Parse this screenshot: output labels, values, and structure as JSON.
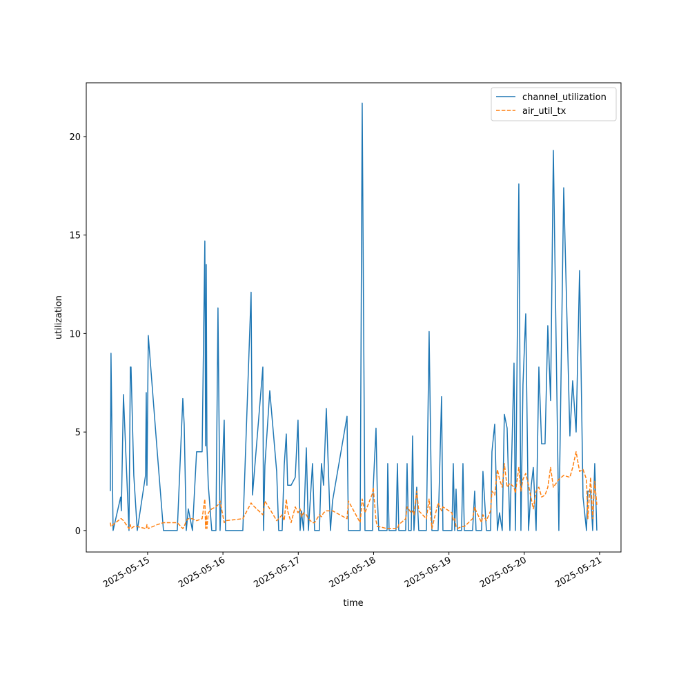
{
  "chart_data": {
    "type": "line",
    "x_label": "time",
    "y_label": "utilization",
    "x": [
      "2025-05-14 12:07",
      "2025-05-14 12:20",
      "2025-05-14 13:00",
      "2025-05-14 15:25",
      "2025-05-14 15:38",
      "2025-05-14 16:18",
      "2025-05-14 18:04",
      "2025-05-14 18:30",
      "2025-05-14 18:43",
      "2025-05-14 19:36",
      "2025-05-14 20:42",
      "2025-05-14 23:20",
      "2025-05-14 23:34",
      "2025-05-14 23:47",
      "2025-05-15 00:13",
      "2025-05-15 03:04",
      "2025-05-15 05:03",
      "2025-05-15 09:27",
      "2025-05-15 11:13",
      "2025-05-15 11:39",
      "2025-05-15 12:19",
      "2025-05-15 12:58",
      "2025-05-15 14:17",
      "2025-05-15 15:36",
      "2025-05-15 17:22",
      "2025-05-15 18:14",
      "2025-05-15 18:28",
      "2025-05-15 18:41",
      "2025-05-15 18:54",
      "2025-05-15 19:20",
      "2025-05-15 20:26",
      "2025-05-15 21:46",
      "2025-05-15 22:25",
      "2025-05-15 23:05",
      "2025-05-16 00:24",
      "2025-05-16 00:50",
      "2025-05-16 06:20",
      "2025-05-16 08:58",
      "2025-05-16 09:25",
      "2025-05-16 12:43",
      "2025-05-16 12:56",
      "2025-05-16 13:22",
      "2025-05-16 14:55",
      "2025-05-16 17:07",
      "2025-05-16 17:46",
      "2025-05-16 18:52",
      "2025-05-16 19:31",
      "2025-05-16 20:11",
      "2025-05-16 20:37",
      "2025-05-16 21:43",
      "2025-05-16 23:02",
      "2025-05-16 23:55",
      "2025-05-17 00:35",
      "2025-05-17 01:01",
      "2025-05-17 01:41",
      "2025-05-17 02:34",
      "2025-05-17 03:13",
      "2025-05-17 04:32",
      "2025-05-17 05:12",
      "2025-05-17 06:44",
      "2025-05-17 07:23",
      "2025-05-17 08:03",
      "2025-05-17 08:56",
      "2025-05-17 10:15",
      "2025-05-17 10:55",
      "2025-05-17 15:32",
      "2025-05-17 15:58",
      "2025-05-17 19:43",
      "2025-05-17 20:22",
      "2025-05-17 21:15",
      "2025-05-17 23:40",
      "2025-05-17 23:53",
      "2025-05-18 00:46",
      "2025-05-18 01:12",
      "2025-05-18 01:38",
      "2025-05-18 04:17",
      "2025-05-18 04:30",
      "2025-05-18 04:56",
      "2025-05-18 07:08",
      "2025-05-18 07:35",
      "2025-05-18 08:01",
      "2025-05-18 10:13",
      "2025-05-18 10:40",
      "2025-05-18 11:06",
      "2025-05-18 11:59",
      "2025-05-18 12:25",
      "2025-05-18 12:51",
      "2025-05-18 13:44",
      "2025-05-18 14:23",
      "2025-05-18 16:49",
      "2025-05-18 17:41",
      "2025-05-18 18:34",
      "2025-05-18 20:33",
      "2025-05-18 21:39",
      "2025-05-18 22:05",
      "2025-05-19 00:57",
      "2025-05-19 01:23",
      "2025-05-19 01:50",
      "2025-05-19 02:16",
      "2025-05-19 02:42",
      "2025-05-19 04:01",
      "2025-05-19 04:28",
      "2025-05-19 04:54",
      "2025-05-19 07:32",
      "2025-05-19 08:12",
      "2025-05-19 08:38",
      "2025-05-19 10:24",
      "2025-05-19 10:50",
      "2025-05-19 11:56",
      "2025-05-19 13:16",
      "2025-05-19 13:42",
      "2025-05-19 14:35",
      "2025-05-19 15:27",
      "2025-05-19 16:07",
      "2025-05-19 16:59",
      "2025-05-19 17:39",
      "2025-05-19 18:32",
      "2025-05-19 19:25",
      "2025-05-19 20:44",
      "2025-05-19 21:10",
      "2025-05-19 22:16",
      "2025-05-19 22:56",
      "2025-05-19 23:35",
      "2025-05-20 00:28",
      "2025-05-20 01:21",
      "2025-05-20 02:14",
      "2025-05-20 02:53",
      "2025-05-20 03:46",
      "2025-05-20 04:39",
      "2025-05-20 05:31",
      "2025-05-20 06:37",
      "2025-05-20 07:30",
      "2025-05-20 08:23",
      "2025-05-20 09:16",
      "2025-05-20 11:01",
      "2025-05-20 12:34",
      "2025-05-20 14:32",
      "2025-05-20 15:25",
      "2025-05-20 16:31",
      "2025-05-20 17:37",
      "2025-05-20 18:43",
      "2025-05-20 19:49",
      "2025-05-20 20:15",
      "2025-05-20 21:08",
      "2025-05-20 21:47",
      "2025-05-20 22:27",
      "2025-05-20 23:07"
    ],
    "series": [
      {
        "name": "channel_utilization",
        "color": "#1f77b4",
        "linestyle": "solid",
        "values": [
          2.0,
          9.0,
          0,
          1.7,
          1.0,
          6.9,
          0,
          8.3,
          8.3,
          2.8,
          0,
          2.8,
          7.0,
          2.3,
          9.9,
          4.0,
          0,
          0,
          6.7,
          5.4,
          0,
          1.1,
          0,
          4.0,
          4.0,
          14.7,
          4.3,
          13.5,
          4.3,
          2.3,
          0,
          0,
          11.3,
          0,
          5.6,
          0,
          0,
          12.1,
          1.8,
          8.3,
          0,
          3.3,
          7.1,
          3.0,
          0,
          0,
          3.3,
          4.9,
          2.3,
          2.3,
          2.7,
          5.6,
          0,
          1.0,
          0,
          4.2,
          0,
          3.4,
          0,
          0,
          3.4,
          2.3,
          6.2,
          0,
          1.5,
          5.8,
          0,
          0,
          21.7,
          0,
          0,
          2.2,
          5.2,
          1.7,
          0,
          0,
          3.4,
          0,
          0,
          3.4,
          0,
          0,
          3.4,
          0,
          0,
          4.8,
          0,
          2.2,
          0,
          0,
          10.1,
          0,
          0,
          6.8,
          0,
          0,
          3.4,
          0,
          2.1,
          0,
          0,
          3.4,
          0,
          0,
          2.0,
          0,
          0,
          3.0,
          0,
          0,
          4.0,
          5.4,
          0,
          0.9,
          0,
          5.9,
          5.2,
          0,
          8.5,
          0,
          17.6,
          0,
          7.4,
          11.0,
          0,
          2.3,
          3.2,
          0,
          8.3,
          4.4,
          4.4,
          10.4,
          6.6,
          19.3,
          0,
          17.4,
          4.8,
          7.6,
          5.0,
          13.2,
          1.7,
          0,
          2.0,
          2.0,
          0,
          3.4,
          0
        ]
      },
      {
        "name": "air_util_tx",
        "color": "#ff7f0e",
        "linestyle": "dashed",
        "values": [
          0.4,
          0.2,
          0.3,
          0.6,
          0.6,
          0.5,
          0.1,
          0.3,
          0.1,
          0.2,
          0.2,
          0.1,
          0.1,
          0.3,
          0.1,
          0.3,
          0.4,
          0.4,
          0.1,
          0.2,
          0.5,
          0.6,
          0.6,
          0.5,
          0.6,
          1.6,
          0.1,
          0.8,
          0.1,
          0.9,
          1.1,
          1.2,
          1.3,
          1.5,
          0.4,
          0.5,
          0.6,
          1.4,
          1.3,
          0.8,
          1.0,
          1.5,
          1.1,
          0.5,
          0.6,
          0.8,
          0.5,
          1.6,
          1.0,
          0.4,
          1.2,
          0.9,
          1.1,
          0.7,
          0.9,
          0.8,
          0.6,
          0.4,
          0.4,
          0.8,
          0.7,
          0.9,
          1.0,
          1.0,
          1.0,
          0.6,
          1.5,
          0.4,
          1.6,
          0.9,
          1.9,
          2.2,
          0.5,
          0.2,
          0.2,
          0.1,
          0.1,
          0.1,
          0.1,
          0.1,
          0.3,
          0.6,
          1.2,
          1.1,
          0.9,
          1.0,
          0.8,
          2.0,
          1.0,
          0.6,
          1.6,
          0.1,
          1.4,
          1.0,
          1.2,
          0.9,
          0.5,
          0.6,
          0.2,
          0.1,
          0.2,
          0.2,
          0.2,
          0.6,
          1.2,
          1.0,
          0.4,
          0.8,
          0.5,
          1.0,
          2.0,
          1.8,
          3.1,
          2.6,
          2.2,
          3.4,
          2.2,
          2.4,
          2.2,
          1.9,
          3.2,
          2.0,
          2.6,
          2.9,
          2.3,
          1.6,
          1.1,
          2.0,
          2.2,
          1.7,
          1.8,
          2.2,
          3.2,
          2.2,
          2.6,
          2.8,
          2.7,
          3.2,
          4.0,
          3.0,
          3.1,
          2.6,
          0.6,
          2.7,
          0.6,
          2.5,
          1.3
        ]
      }
    ],
    "xlim": [
      "2025-05-14 04:27",
      "2025-05-21 06:49"
    ],
    "xticks": [
      "2025-05-15",
      "2025-05-16",
      "2025-05-17",
      "2025-05-18",
      "2025-05-19",
      "2025-05-20",
      "2025-05-21"
    ],
    "ylim": [
      -1.09,
      22.73
    ],
    "yticks": [
      0,
      5,
      10,
      15,
      20
    ],
    "legend": "upper right",
    "grid": false
  }
}
